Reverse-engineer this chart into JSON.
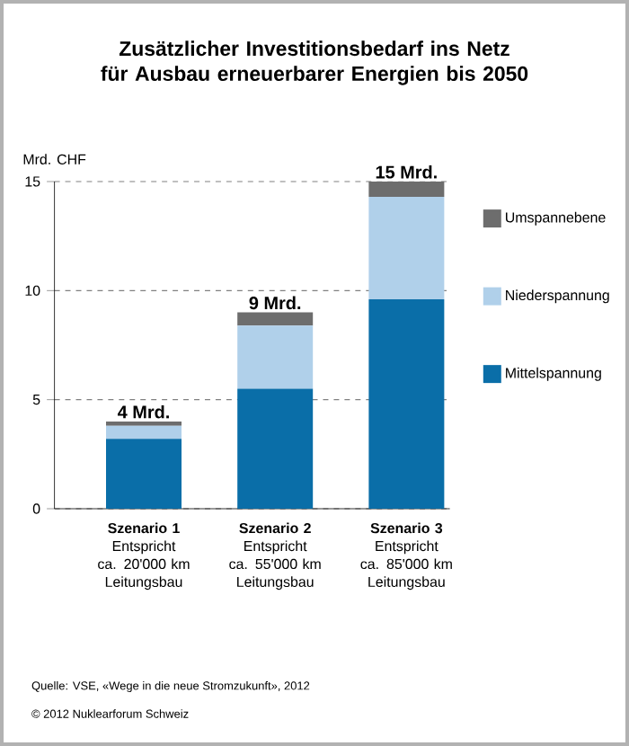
{
  "chart_data": {
    "type": "bar",
    "stacked": true,
    "title": "Zusätzlicher Investitionsbedarf ins Netz\nfür Ausbau erneuerbarer Energien bis 2050",
    "ylabel": "Mrd. CHF",
    "categories": [
      "**Szenario 1**\nEntspricht\nca. 20'000 km\nLeitungsbau",
      "**Szenario 2**\nEntspricht\nca. 55'000 km\nLeitungsbau",
      "**Szenario 3**\nEntspricht\nca. 85'000 km\nLeitungsbau"
    ],
    "series": [
      {
        "name": "Mittelspannung",
        "color": "#0a6ea8",
        "values": [
          3.2,
          5.5,
          9.6
        ]
      },
      {
        "name": "Niederspannung",
        "color": "#b0d0ea",
        "values": [
          0.6,
          2.9,
          4.7
        ]
      },
      {
        "name": "Umspannebene",
        "color": "#6d6d6d",
        "values": [
          0.2,
          0.6,
          0.7
        ]
      }
    ],
    "totals": [
      "4 Mrd.",
      "9 Mrd.",
      "15 Mrd."
    ],
    "ylim": [
      0,
      15
    ],
    "yticks": [
      0,
      5,
      10,
      15
    ],
    "grid": "y",
    "legend": "right",
    "annotations": [
      "Quelle: VSE, «Wege in die neue Stromzukunft», 2012",
      "© 2012 Nuklearforum Schweiz"
    ]
  }
}
